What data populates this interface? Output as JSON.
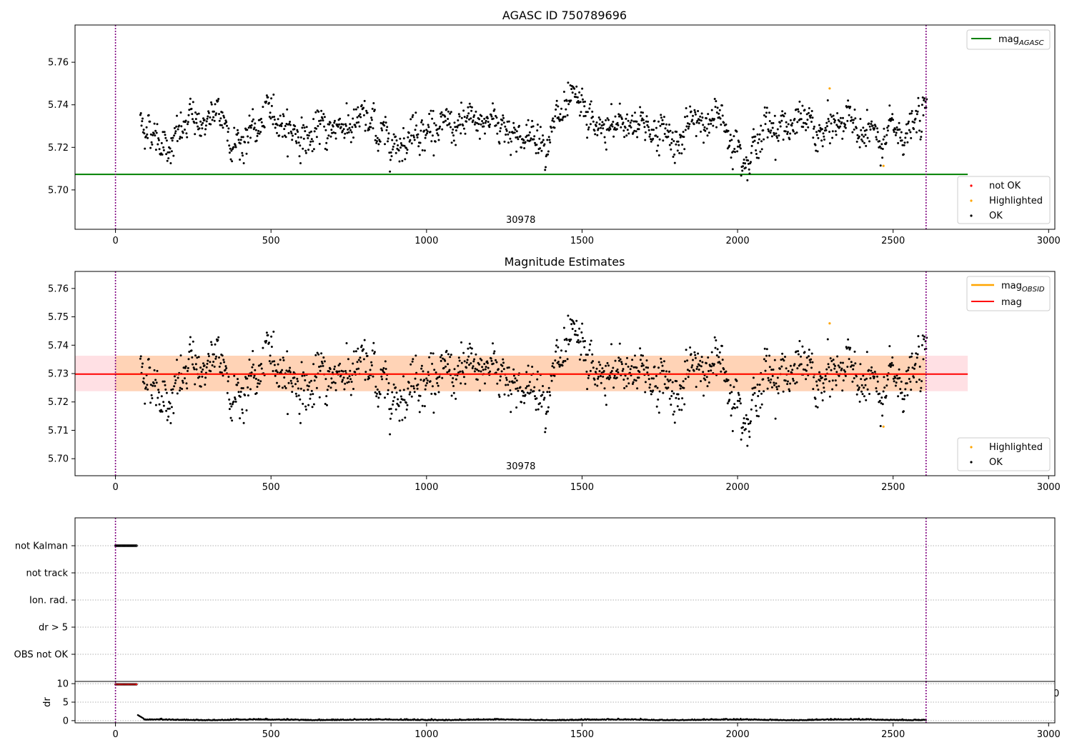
{
  "figure": {
    "title": "AGASC ID 750789696",
    "panel2_title": "Magnitude Estimates"
  },
  "colors": {
    "ok": "#000000",
    "highlighted": "#ffa500",
    "not_ok": "#ff0000",
    "mag_agasc": "#008000",
    "mag_obsid": "#ffa500",
    "mag": "#ff0000",
    "band_obsid": "#ffd2b0",
    "band_mag": "#ffe0e4",
    "marker_line": "#800080"
  },
  "chart_data": [
    {
      "type": "scatter",
      "title": "AGASC ID 750789696",
      "xlim": [
        -130,
        3020
      ],
      "ylim": [
        5.6815,
        5.7775
      ],
      "xticks": [
        "0",
        "500",
        "1000",
        "1500",
        "2000",
        "2500",
        "3000"
      ],
      "xtick_values": [
        0,
        500,
        1000,
        1500,
        2000,
        2500,
        3000
      ],
      "yticks": [
        "5.70",
        "5.72",
        "5.74",
        "5.76"
      ],
      "ytick_values": [
        5.7,
        5.72,
        5.74,
        5.76
      ],
      "hlines": [
        {
          "name": "mag_AGASC",
          "y": 5.7073,
          "x_start": -130,
          "x_end": 2740
        }
      ],
      "vlines": [
        0,
        2606
      ],
      "obsid_label": {
        "text": "30978",
        "x": 1303
      },
      "series": [
        {
          "name": "OK",
          "x_start": 80,
          "x_end": 2608,
          "count": 1400,
          "mean": 5.729,
          "spread": 0.0065
        },
        {
          "name": "Highlighted",
          "points": [
            [
              2296,
              5.7477
            ],
            [
              2469,
              5.7113
            ]
          ]
        },
        {
          "name": "not OK",
          "points": []
        }
      ],
      "legends": {
        "lines": [
          {
            "label": "mag",
            "sub": "AGASC"
          }
        ],
        "points": [
          {
            "label": "not OK"
          },
          {
            "label": "Highlighted"
          },
          {
            "label": "OK"
          }
        ]
      }
    },
    {
      "type": "scatter",
      "title": "Magnitude Estimates",
      "xlim": [
        -130,
        3020
      ],
      "ylim": [
        5.694,
        5.766
      ],
      "xticks": [
        "0",
        "500",
        "1000",
        "1500",
        "2000",
        "2500",
        "3000"
      ],
      "xtick_values": [
        0,
        500,
        1000,
        1500,
        2000,
        2500,
        3000
      ],
      "yticks": [
        "5.70",
        "5.71",
        "5.72",
        "5.73",
        "5.74",
        "5.75",
        "5.76"
      ],
      "ytick_values": [
        5.7,
        5.71,
        5.72,
        5.73,
        5.74,
        5.75,
        5.76
      ],
      "hlines": [
        {
          "name": "mag_OBSID",
          "y": 5.7298,
          "x_start": 0,
          "x_end": 2606
        },
        {
          "name": "mag",
          "y": 5.7298,
          "x_start": -130,
          "x_end": 2740
        }
      ],
      "bands": [
        {
          "name": "mag_OBSID",
          "y_low": 5.7238,
          "y_high": 5.7363,
          "x_start": 0,
          "x_end": 2606
        },
        {
          "name": "mag",
          "y_low": 5.7238,
          "y_high": 5.7363,
          "x_start": -130,
          "x_end": 2740
        }
      ],
      "vlines": [
        0,
        2606
      ],
      "obsid_label": {
        "text": "30978",
        "x": 1303
      },
      "series": [
        {
          "name": "OK",
          "x_start": 80,
          "x_end": 2608,
          "count": 1400,
          "mean": 5.729,
          "spread": 0.0065
        },
        {
          "name": "Highlighted",
          "points": [
            [
              2296,
              5.7477
            ],
            [
              2469,
              5.7113
            ]
          ]
        }
      ],
      "legends": {
        "lines": [
          {
            "label": "mag",
            "sub": "OBSID"
          },
          {
            "label": "mag"
          }
        ],
        "points": [
          {
            "label": "Highlighted"
          },
          {
            "label": "OK"
          }
        ]
      }
    },
    {
      "type": "scatter",
      "xlim": [
        -130,
        3020
      ],
      "categories": [
        "not Kalman",
        "not track",
        "Ion. rad.",
        "dr > 5",
        "OBS not OK"
      ],
      "flag_series": [
        {
          "category": "not Kalman",
          "x_start": 0,
          "x_end": 68,
          "step": 2.5
        }
      ],
      "vlines": [
        0,
        2606
      ],
      "overlap_text": "0"
    },
    {
      "type": "scatter",
      "ylabel": "dr",
      "xlim": [
        -130,
        3020
      ],
      "ylim": [
        -0.6,
        10.6
      ],
      "xticks": [
        "0",
        "500",
        "1000",
        "1500",
        "2000",
        "2500",
        "3000"
      ],
      "xtick_values": [
        0,
        500,
        1000,
        1500,
        2000,
        2500,
        3000
      ],
      "yticks": [
        "0",
        "5",
        "10"
      ],
      "ytick_values": [
        0,
        5,
        10
      ],
      "vlines": [
        0,
        2606
      ],
      "series": [
        {
          "name": "clipped",
          "x_start": 0,
          "x_end": 68,
          "y": 9.8,
          "step": 2.5
        },
        {
          "name": "dr",
          "x_start": 72,
          "x_end": 2606,
          "base": 0.15,
          "spike_x": 75,
          "spike_y": 1.5
        }
      ]
    }
  ]
}
